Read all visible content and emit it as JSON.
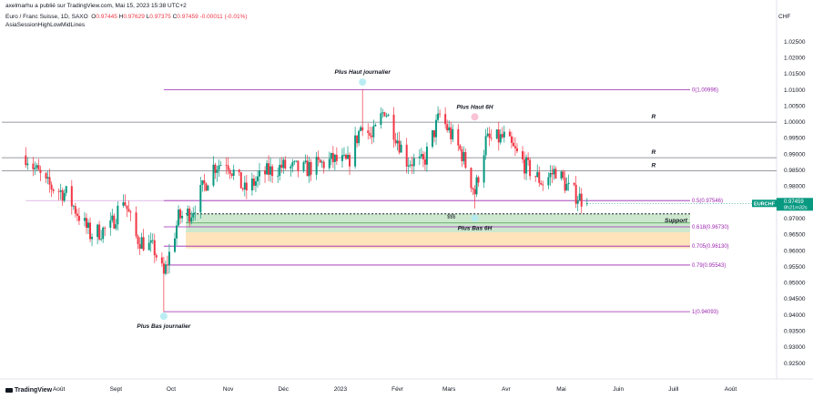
{
  "header": {
    "publisher": "axelmarhu a publié sur TradingView.com, Mai 15, 2023 15:38 UTC+2",
    "symbol_line": "Euro / Franc Suisse, 1D, SAXO",
    "ohlc": {
      "o": "0.97445",
      "h": "0.97629",
      "l": "0.97375",
      "c": "0.97459",
      "change": "-0.00011 (-0.01%)"
    },
    "indicator": "AsiaSessionHighLowMidLines",
    "currency": "CHF"
  },
  "footer": {
    "brand": "TradingView"
  },
  "price_tags": {
    "symbol": "EURCHF",
    "price": "0.97459",
    "countdown": "8h21m32s"
  },
  "colors": {
    "up": "#089981",
    "down": "#f23645",
    "fib": "#9c27b0",
    "resist": "#787b86",
    "support_zone": "#c8e6c9",
    "golden_zone": "#ffe0b2",
    "price_tag": "#089981"
  },
  "chart_data": {
    "type": "candlestick",
    "y_axis": {
      "min": 0.92,
      "max": 1.035,
      "ticks": [
        "1.02500",
        "1.02000",
        "1.01500",
        "1.01000",
        "1.00500",
        "1.00000",
        "0.99500",
        "0.99000",
        "0.98500",
        "0.98000",
        "0.97500",
        "0.97000",
        "0.96500",
        "0.96000",
        "0.95500",
        "0.95000",
        "0.94500",
        "0.94000",
        "0.93500",
        "0.93000",
        "0.92500"
      ]
    },
    "x_axis": {
      "labels": [
        "Août",
        "Sept",
        "Oct",
        "Nov",
        "Déc",
        "2023",
        "Févr",
        "Mars",
        "Avr",
        "Mai",
        "Juin",
        "Juill",
        "Août"
      ]
    },
    "candles": {
      "waypoints": [
        {
          "date": "2022-07-14",
          "close": 0.9895
        },
        {
          "date": "2022-07-25",
          "close": 0.9805
        },
        {
          "date": "2022-08-05",
          "close": 0.9775
        },
        {
          "date": "2022-08-18",
          "close": 0.965
        },
        {
          "date": "2022-08-29",
          "close": 0.967
        },
        {
          "date": "2022-09-05",
          "close": 0.9765
        },
        {
          "date": "2022-09-12",
          "close": 0.964
        },
        {
          "date": "2022-09-22",
          "close": 0.96
        },
        {
          "date": "2022-09-27",
          "close": 0.952
        },
        {
          "date": "2022-10-05",
          "close": 0.97
        },
        {
          "date": "2022-10-12",
          "close": 0.972
        },
        {
          "date": "2022-10-24",
          "close": 0.986
        },
        {
          "date": "2022-10-31",
          "close": 0.988
        },
        {
          "date": "2022-11-10",
          "close": 0.9785
        },
        {
          "date": "2022-11-21",
          "close": 0.984
        },
        {
          "date": "2022-11-30",
          "close": 0.986
        },
        {
          "date": "2022-12-12",
          "close": 0.985
        },
        {
          "date": "2022-12-28",
          "close": 0.988
        },
        {
          "date": "2023-01-05",
          "close": 0.987
        },
        {
          "date": "2023-01-13",
          "close": 1.0
        },
        {
          "date": "2023-01-18",
          "close": 0.9945
        },
        {
          "date": "2023-01-25",
          "close": 1.004
        },
        {
          "date": "2023-02-06",
          "close": 0.988
        },
        {
          "date": "2023-02-15",
          "close": 0.987
        },
        {
          "date": "2023-02-24",
          "close": 1.002
        },
        {
          "date": "2023-03-08",
          "close": 0.99
        },
        {
          "date": "2023-03-15",
          "close": 0.978
        },
        {
          "date": "2023-03-21",
          "close": 0.994
        },
        {
          "date": "2023-03-31",
          "close": 0.995
        },
        {
          "date": "2023-04-12",
          "close": 0.986
        },
        {
          "date": "2023-04-21",
          "close": 0.981
        },
        {
          "date": "2023-04-28",
          "close": 0.985
        },
        {
          "date": "2023-05-05",
          "close": 0.979
        },
        {
          "date": "2023-05-15",
          "close": 0.9746
        }
      ],
      "last": {
        "open": 0.97445,
        "high": 0.97629,
        "low": 0.97375,
        "close": 0.97459
      }
    },
    "fib_levels": [
      {
        "label": "0(1.00996)",
        "value": 1.00996
      },
      {
        "label": "0.5(0.97546)",
        "value": 0.97546
      },
      {
        "label": "0.618(0.96730)",
        "value": 0.9673
      },
      {
        "label": "0.705(0.96130)",
        "value": 0.9613
      },
      {
        "label": "0.79(0.95543)",
        "value": 0.95543
      },
      {
        "label": "1(0.94093)",
        "value": 0.94093
      }
    ],
    "resistance_lines": [
      {
        "label": "R",
        "value": 0.99985
      },
      {
        "label": "R",
        "value": 0.9888
      },
      {
        "label": "R",
        "value": 0.98475
      }
    ],
    "support": {
      "label": "Support",
      "top": 0.97135,
      "bottom": 0.9685
    },
    "zones": [
      {
        "name": "support",
        "top": 0.97135,
        "bottom": 0.9656
      },
      {
        "name": "golden",
        "top": 0.9656,
        "bottom": 0.9606
      }
    ],
    "liquidity_label": {
      "text": "$$$",
      "value": 0.9705
    },
    "annotations": [
      {
        "text": "Plus Haut journalier",
        "date": "2023-01-13",
        "value": 1.0123,
        "anchor": "above"
      },
      {
        "text": "Plus Haut 6H",
        "date": "2023-03-15",
        "value": 1.0015,
        "anchor": "above"
      },
      {
        "text": "Plus Bas 6H",
        "date": "2023-03-15",
        "value": 0.97,
        "anchor": "below"
      },
      {
        "text": "Plus Bas journalier",
        "date": "2022-09-27",
        "value": 0.9395,
        "anchor": "below"
      }
    ]
  }
}
